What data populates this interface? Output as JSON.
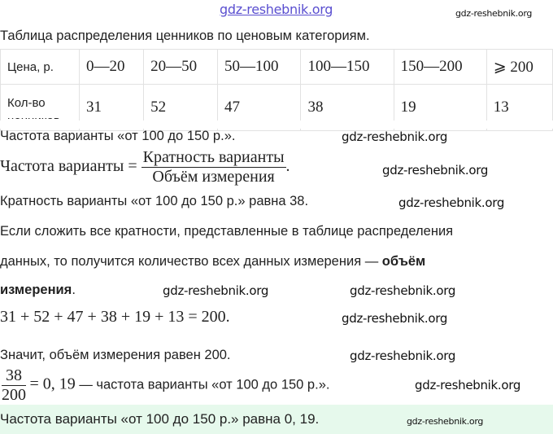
{
  "watermark": "gdz-reshebnik.org",
  "title": "Таблица распределения ценников по ценовым категориям.",
  "table": {
    "row1": [
      "Цена, р.",
      "0—20",
      "20—50",
      "50—100",
      "100—150",
      "150—200",
      "⩾ 200"
    ],
    "row2": [
      "Кол-во ценников",
      "31",
      "52",
      "47",
      "38",
      "19",
      "13"
    ]
  },
  "lines": {
    "l1": "Частота варианты «от 100 до 150 р.».",
    "formula_left": "Частота варианты =",
    "formula_num": "Кратность варианты",
    "formula_den": "Объём измерения",
    "l2": "Кратность варианты «от 100 до 150 р.» равна 38.",
    "l3": "Если сложить все кратности, представленные в таблице распределения",
    "l4a": "данных, то получится количество всех данных измерения — ",
    "l4b": "объём",
    "l5": "измерения",
    "eq": "31 + 52 + 47 + 38 + 19 + 13 = 200.",
    "l6": "Значит, объём измерения равен 200.",
    "frac_num": "38",
    "frac_den": "200",
    "frac_rest": "= 0, 19",
    "frac_text": " — частота варианты «от 100 до 150 р.».",
    "answer": "Частота варианты «от 100 до 150 р.» равна 0, 19."
  }
}
